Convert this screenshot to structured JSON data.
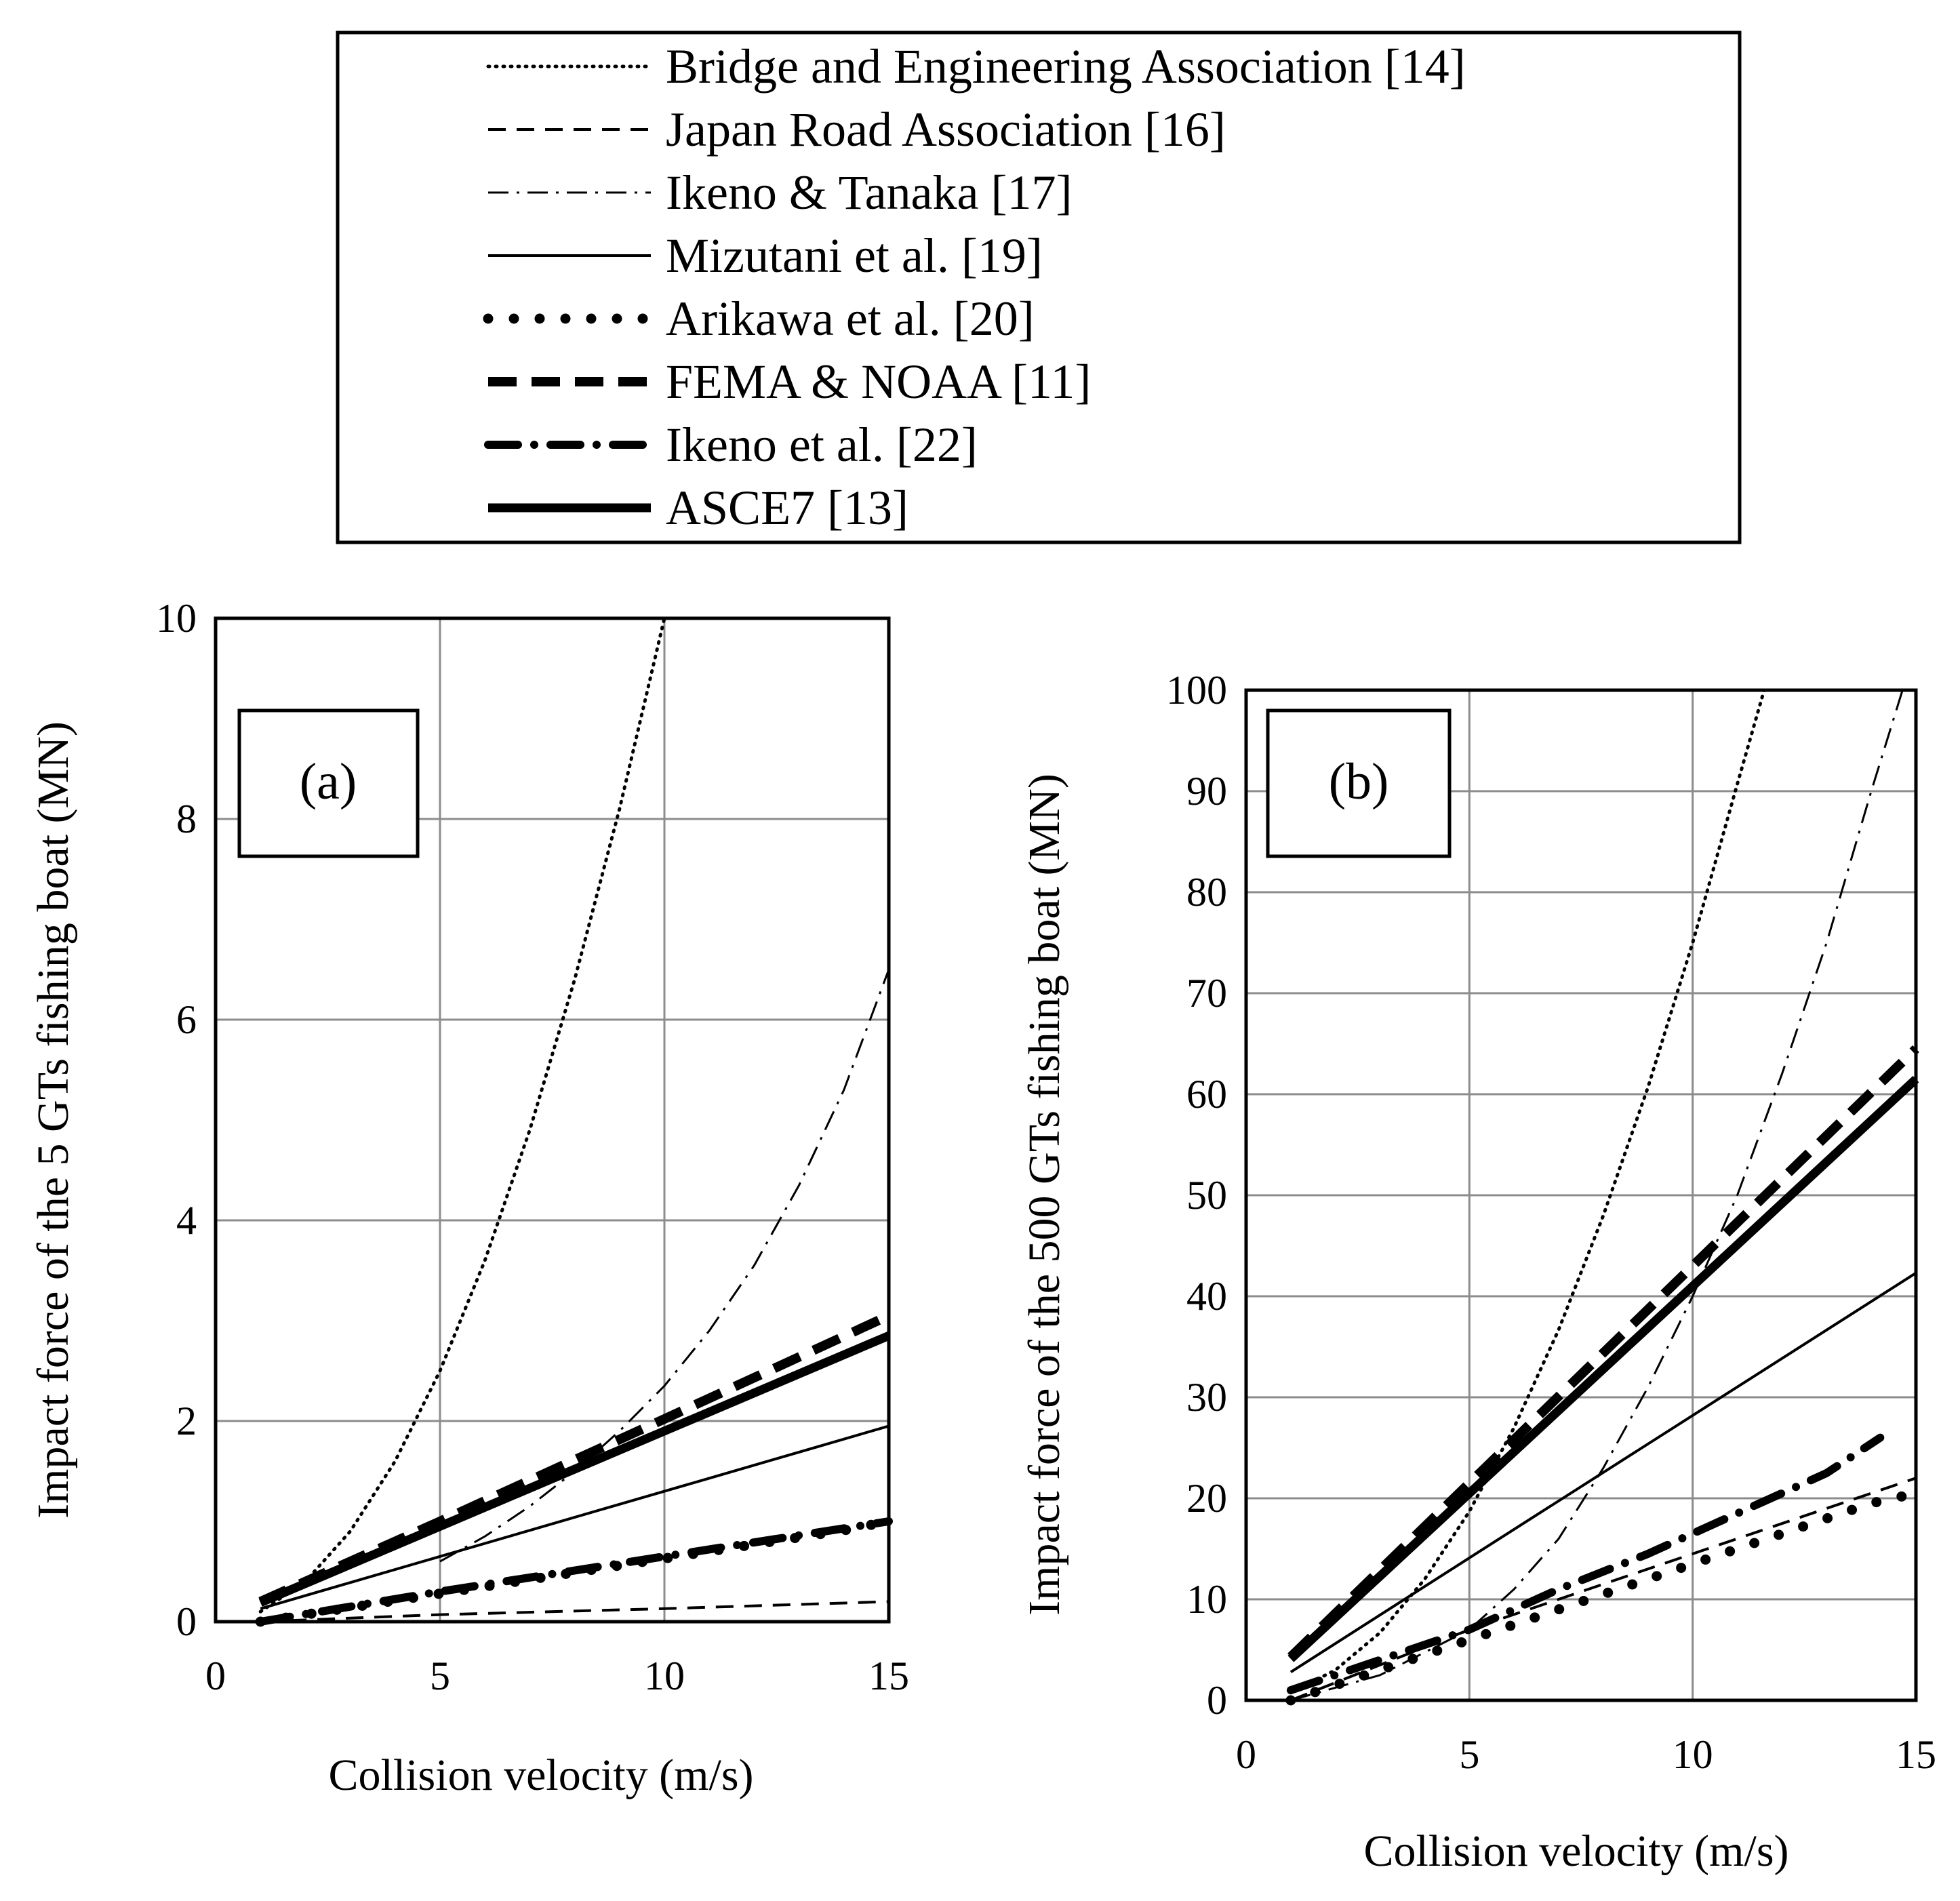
{
  "legend": [
    {
      "key": "bea",
      "label": "Bridge and Engineering Association [14]"
    },
    {
      "key": "jra",
      "label": "Japan Road Association [16]"
    },
    {
      "key": "it",
      "label": "Ikeno & Tanaka [17]"
    },
    {
      "key": "miz",
      "label": "Mizutani et al. [19]"
    },
    {
      "key": "ari",
      "label": "Arikawa et al. [20]"
    },
    {
      "key": "fema",
      "label": "FEMA & NOAA [11]"
    },
    {
      "key": "ikeno",
      "label": "Ikeno et al. [22]"
    },
    {
      "key": "asce",
      "label": "ASCE7 [13]"
    }
  ],
  "chart_data": [
    {
      "type": "line",
      "panel": "(a)",
      "xlabel": "Collision velocity (m/s)",
      "ylabel": "Impact force of the 5 GTs fishing boat (MN)",
      "xlim": [
        0,
        15
      ],
      "ylim": [
        0,
        10
      ],
      "xticks": [
        0,
        5,
        10,
        15
      ],
      "yticks": [
        0,
        2,
        4,
        6,
        8,
        10
      ],
      "grid": true,
      "series": [
        {
          "key": "bea",
          "x": [
            1,
            2,
            3,
            4,
            5,
            6,
            7,
            8,
            9,
            10
          ],
          "y": [
            0.1,
            0.4,
            0.9,
            1.6,
            2.5,
            3.6,
            4.9,
            6.4,
            8.1,
            10.0
          ]
        },
        {
          "key": "jra",
          "x": [
            1,
            5,
            10,
            15
          ],
          "y": [
            0.0,
            0.07,
            0.13,
            0.2
          ]
        },
        {
          "key": "it",
          "x": [
            5,
            6,
            7,
            8,
            9,
            10,
            11,
            12,
            13,
            14,
            15
          ],
          "y": [
            0.6,
            0.85,
            1.15,
            1.5,
            1.9,
            2.35,
            2.9,
            3.55,
            4.35,
            5.3,
            6.5
          ]
        },
        {
          "key": "miz",
          "x": [
            1,
            3,
            5,
            7,
            9,
            11,
            13,
            15
          ],
          "y": [
            0.13,
            0.39,
            0.65,
            0.91,
            1.17,
            1.43,
            1.69,
            1.95
          ]
        },
        {
          "key": "ari",
          "x": [
            1,
            2,
            3,
            4,
            5,
            6,
            7,
            8,
            9,
            10,
            11,
            12,
            13,
            14,
            15
          ],
          "y": [
            0.0,
            0.07,
            0.14,
            0.21,
            0.28,
            0.35,
            0.42,
            0.49,
            0.56,
            0.63,
            0.7,
            0.77,
            0.84,
            0.91,
            1.0
          ]
        },
        {
          "key": "fema",
          "x": [
            1,
            5,
            10,
            15
          ],
          "y": [
            0.2,
            1.0,
            2.02,
            3.05
          ]
        },
        {
          "key": "ikeno",
          "x": [
            1,
            5,
            10,
            15
          ],
          "y": [
            0.0,
            0.3,
            0.65,
            1.0
          ]
        },
        {
          "key": "asce",
          "x": [
            1,
            5,
            10,
            15
          ],
          "y": [
            0.19,
            0.95,
            1.9,
            2.85
          ]
        }
      ]
    },
    {
      "type": "line",
      "panel": "(b)",
      "xlabel": "Collision velocity (m/s)",
      "ylabel": "Impact force of the 500 GTs fishing boat (MN)",
      "xlim": [
        0,
        15
      ],
      "ylim": [
        0,
        100
      ],
      "xticks": [
        0,
        5,
        10,
        15
      ],
      "yticks": [
        0,
        10,
        20,
        30,
        40,
        50,
        60,
        70,
        80,
        90,
        100
      ],
      "grid": true,
      "series": [
        {
          "key": "bea",
          "x": [
            1,
            2,
            3,
            4,
            5,
            6,
            7,
            8,
            9,
            10,
            11,
            11.6
          ],
          "y": [
            0.75,
            3.0,
            6.7,
            12.0,
            18.7,
            27.0,
            36.7,
            48.0,
            60.7,
            75.0,
            90.7,
            100.0
          ]
        },
        {
          "key": "jra",
          "x": [
            1,
            5,
            10,
            15
          ],
          "y": [
            0.0,
            7.0,
            14.5,
            22.0
          ]
        },
        {
          "key": "it",
          "x": [
            1,
            3,
            5,
            6,
            7,
            8,
            9,
            10,
            11,
            12,
            13,
            14,
            14.7
          ],
          "y": [
            0.0,
            2.5,
            7.0,
            11.0,
            16.0,
            23.0,
            31.0,
            40.0,
            50.0,
            62.0,
            75.0,
            90.0,
            100.0
          ]
        },
        {
          "key": "miz",
          "x": [
            1,
            5,
            10,
            15
          ],
          "y": [
            2.8,
            14.1,
            28.2,
            42.3
          ]
        },
        {
          "key": "ari",
          "x": [
            1,
            2,
            3,
            4,
            5,
            6,
            7,
            8,
            9,
            10,
            11,
            12,
            13,
            14,
            15
          ],
          "y": [
            0.0,
            1.5,
            3.0,
            4.5,
            6.0,
            7.5,
            9.0,
            10.5,
            12.0,
            13.5,
            15.0,
            16.5,
            18.0,
            19.5,
            20.5
          ]
        },
        {
          "key": "fema",
          "x": [
            1,
            5,
            10,
            15
          ],
          "y": [
            4.3,
            21.5,
            43.0,
            64.5
          ]
        },
        {
          "key": "ikeno",
          "x": [
            1,
            3,
            5,
            7,
            9,
            11,
            13,
            14.2
          ],
          "y": [
            1.0,
            4.0,
            7.0,
            11.0,
            14.5,
            18.5,
            22.5,
            26.0
          ]
        },
        {
          "key": "asce",
          "x": [
            1,
            5,
            10,
            15
          ],
          "y": [
            4.1,
            20.5,
            41.0,
            61.5
          ]
        }
      ]
    }
  ]
}
